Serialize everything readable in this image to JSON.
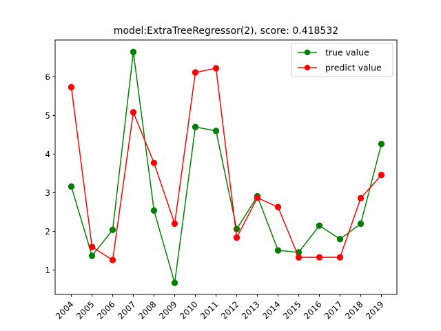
{
  "chart_data": {
    "type": "line",
    "title": "model:ExtraTreeRegressor(2), score: 0.418532",
    "xlabel": "",
    "ylabel": "",
    "categories": [
      "2004",
      "2005",
      "2006",
      "2007",
      "2008",
      "2009",
      "2010",
      "2011",
      "2012",
      "2013",
      "2014",
      "2015",
      "2016",
      "2017",
      "2018",
      "2019"
    ],
    "ylim": [
      0.37,
      6.95
    ],
    "yticks": [
      1,
      2,
      3,
      4,
      5,
      6
    ],
    "grid": false,
    "legend_position": "top-right",
    "series": [
      {
        "name": "true value",
        "color": "#008000",
        "values": [
          3.16,
          1.37,
          2.04,
          6.64,
          2.54,
          0.67,
          4.7,
          4.6,
          2.06,
          2.91,
          1.51,
          1.46,
          2.15,
          1.8,
          2.2,
          4.26
        ]
      },
      {
        "name": "predict value",
        "color": "#ff0000",
        "values": [
          5.73,
          1.6,
          1.26,
          5.08,
          3.77,
          2.2,
          6.11,
          6.22,
          1.84,
          2.87,
          2.63,
          1.33,
          1.33,
          1.33,
          2.86,
          3.46
        ]
      }
    ]
  }
}
